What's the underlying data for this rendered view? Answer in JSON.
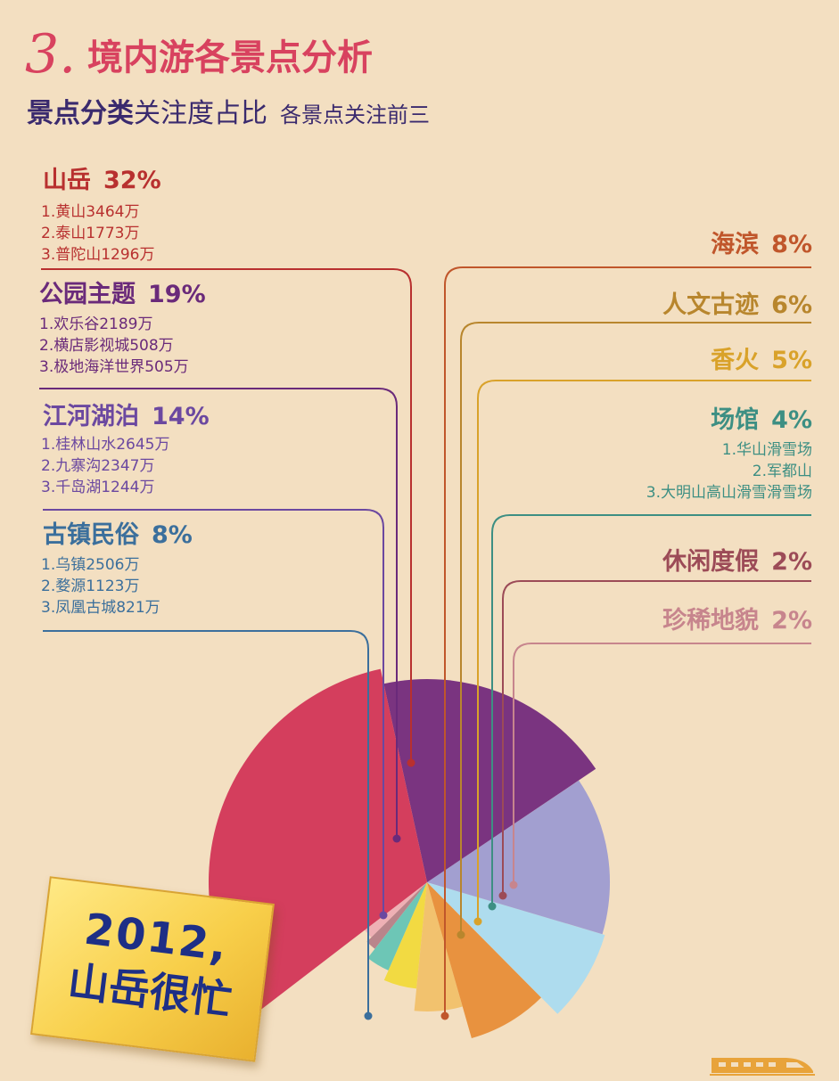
{
  "header": {
    "number": "3.",
    "title": "境内游各景点分析",
    "subtitle_strong": "景点分类",
    "subtitle_normal": "关注度占比",
    "subtitle_note": "各景点关注前三"
  },
  "badge": {
    "year": "2012,",
    "slogan": "山岳很忙"
  },
  "icons": {
    "train": "train-icon"
  },
  "chart_data": {
    "type": "pie",
    "title": "景点分类关注度占比",
    "subtitle": "各景点关注前三",
    "slices": [
      {
        "label": "山岳",
        "pct_label": "32%",
        "value": 32,
        "color": "#d43e5d",
        "top3": [
          "1.黄山3464万",
          "2.泰山1773万",
          "3.普陀山1296万"
        ]
      },
      {
        "label": "公园主题",
        "pct_label": "19%",
        "value": 19,
        "color": "#7a3480",
        "top3": [
          "1.欢乐谷2189万",
          "2.横店影视城508万",
          "3.极地海洋世界505万"
        ]
      },
      {
        "label": "江河湖泊",
        "pct_label": "14%",
        "value": 14,
        "color": "#a29fd0",
        "top3": [
          "1.桂林山水2645万",
          "2.九寨沟2347万",
          "3.千岛湖1244万"
        ]
      },
      {
        "label": "古镇民俗",
        "pct_label": "8%",
        "value": 8,
        "color": "#aedcee",
        "top3": [
          "1.乌镇2506万",
          "2.婺源1123万",
          "3.凤凰古城821万"
        ]
      },
      {
        "label": "海滨",
        "pct_label": "8%",
        "value": 8,
        "color": "#e8923f",
        "top3": []
      },
      {
        "label": "人文古迹",
        "pct_label": "6%",
        "value": 6,
        "color": "#f2c26e",
        "top3": []
      },
      {
        "label": "香火",
        "pct_label": "5%",
        "value": 5,
        "color": "#f2da42",
        "top3": []
      },
      {
        "label": "场馆",
        "pct_label": "4%",
        "value": 4,
        "color": "#6dc6b6",
        "top3": [
          "1.华山滑雪场",
          "2.军都山",
          "3.大明山高山滑雪滑雪场"
        ]
      },
      {
        "label": "休闲度假",
        "pct_label": "2%",
        "value": 2,
        "color": "#b9858b",
        "top3": []
      },
      {
        "label": "珍稀地貌",
        "pct_label": "2%",
        "value": 2,
        "color": "#eeb0b5",
        "top3": []
      }
    ],
    "label_colors": [
      "#b8302f",
      "#6a2a7a",
      "#6b48a0",
      "#3b6f9c",
      "#c0562b",
      "#b8862d",
      "#d9a22a",
      "#3d8f83",
      "#9c4b57",
      "#c7858d"
    ]
  }
}
